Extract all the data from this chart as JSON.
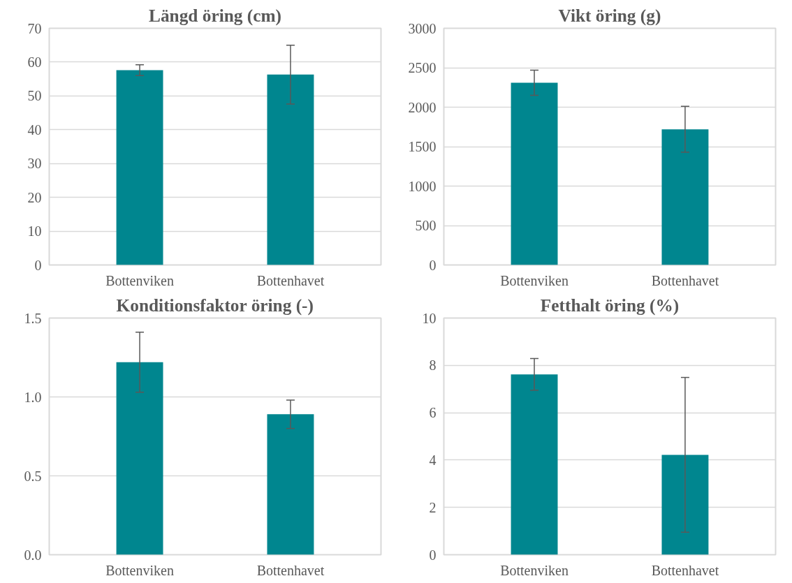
{
  "chart_data": [
    {
      "type": "bar",
      "title": "Längd öring (cm)",
      "categories": [
        "Bottenviken",
        "Bottenhavet"
      ],
      "values": [
        57.6,
        56.3
      ],
      "errors": [
        1.6,
        8.7
      ],
      "color": "#00868f",
      "ylim": [
        0,
        70
      ],
      "yticks": [
        0,
        10,
        20,
        30,
        40,
        50,
        60,
        70
      ],
      "grid": "y"
    },
    {
      "type": "bar",
      "title": "Vikt öring (g)",
      "categories": [
        "Bottenviken",
        "Bottenhavet"
      ],
      "values": [
        2310,
        1720
      ],
      "errors": [
        160,
        290
      ],
      "color": "#00868f",
      "ylim": [
        0,
        3000
      ],
      "yticks": [
        0,
        500,
        1000,
        1500,
        2000,
        2500,
        3000
      ],
      "grid": "y"
    },
    {
      "type": "bar",
      "title": "Konditionsfaktor öring (-)",
      "categories": [
        "Bottenviken",
        "Bottenhavet"
      ],
      "values": [
        1.22,
        0.89
      ],
      "errors": [
        0.19,
        0.09
      ],
      "color": "#00868f",
      "ylim": [
        0,
        1.5
      ],
      "yticks": [
        {
          "value": 0,
          "label": "0.0"
        },
        {
          "value": 0.5,
          "label": "0.5"
        },
        {
          "value": 1,
          "label": "1.0"
        },
        {
          "value": 1.5,
          "label": "1.5"
        }
      ],
      "grid": "y"
    },
    {
      "type": "bar",
      "title": "Fetthalt öring (%)",
      "categories": [
        "Bottenviken",
        "Bottenhavet"
      ],
      "values": [
        7.62,
        4.22
      ],
      "errors": [
        0.67,
        3.27
      ],
      "color": "#00868f",
      "ylim": [
        0,
        10
      ],
      "yticks": [
        0,
        2,
        4,
        6,
        8,
        10
      ],
      "grid": "y"
    }
  ]
}
